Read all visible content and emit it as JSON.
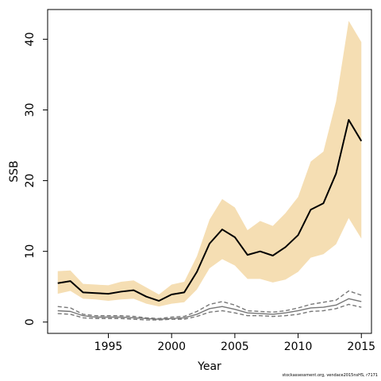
{
  "chart_data": {
    "type": "line",
    "title": "",
    "xlabel": "Year",
    "ylabel": "SSB",
    "xlim": [
      1990.2,
      2015.8
    ],
    "ylim": [
      -1.6,
      44.2
    ],
    "x_ticks": [
      1995,
      2000,
      2005,
      2010,
      2015
    ],
    "y_ticks": [
      0,
      10,
      20,
      30,
      40
    ],
    "grid": false,
    "legend": "none",
    "x": [
      1991,
      1992,
      1993,
      1994,
      1995,
      1996,
      1997,
      1998,
      1999,
      2000,
      2001,
      2002,
      2003,
      2004,
      2005,
      2006,
      2007,
      2008,
      2009,
      2010,
      2011,
      2012,
      2013,
      2014,
      2015
    ],
    "series": [
      {
        "role": "band",
        "color": "#f5deb3",
        "lower": [
          4.0,
          4.4,
          3.3,
          3.2,
          3.0,
          3.2,
          3.3,
          2.6,
          2.2,
          2.6,
          2.8,
          4.6,
          7.6,
          8.9,
          8.0,
          6.1,
          6.1,
          5.6,
          6.0,
          7.1,
          9.1,
          9.6,
          11.0,
          14.7,
          11.8
        ],
        "upper": [
          7.2,
          7.3,
          5.4,
          5.3,
          5.2,
          5.7,
          5.9,
          4.9,
          3.9,
          5.3,
          5.7,
          9.3,
          14.5,
          17.4,
          16.2,
          13.0,
          14.3,
          13.6,
          15.4,
          17.7,
          22.7,
          24.1,
          31.2,
          42.6,
          39.6
        ]
      },
      {
        "role": "estimate",
        "color": "#000000",
        "values": [
          5.5,
          5.8,
          4.2,
          4.1,
          4.0,
          4.3,
          4.5,
          3.6,
          3.0,
          3.9,
          4.2,
          7.1,
          11.1,
          13.1,
          12.0,
          9.5,
          10.0,
          9.4,
          10.6,
          12.3,
          15.9,
          16.8,
          21.0,
          28.6,
          25.6
        ]
      },
      {
        "role": "retrospective-estimate",
        "color": "#777777",
        "values": [
          1.6,
          1.5,
          0.9,
          0.7,
          0.7,
          0.7,
          0.6,
          0.5,
          0.4,
          0.5,
          0.6,
          1.1,
          1.9,
          2.2,
          1.8,
          1.3,
          1.2,
          1.1,
          1.3,
          1.6,
          2.0,
          2.1,
          2.4,
          3.3,
          2.9
        ]
      },
      {
        "role": "retrospective-upper",
        "color": "#777777",
        "dashed": true,
        "values": [
          2.2,
          2.0,
          1.1,
          0.9,
          0.9,
          0.9,
          0.8,
          0.6,
          0.5,
          0.7,
          0.8,
          1.5,
          2.5,
          2.9,
          2.4,
          1.6,
          1.5,
          1.4,
          1.6,
          2.0,
          2.5,
          2.8,
          3.1,
          4.4,
          3.8
        ]
      },
      {
        "role": "retrospective-lower",
        "color": "#777777",
        "dashed": true,
        "values": [
          1.2,
          1.1,
          0.6,
          0.5,
          0.5,
          0.5,
          0.4,
          0.3,
          0.3,
          0.4,
          0.4,
          0.8,
          1.4,
          1.6,
          1.3,
          0.9,
          0.9,
          0.8,
          0.9,
          1.1,
          1.5,
          1.6,
          1.9,
          2.5,
          2.1
        ]
      }
    ]
  },
  "footer": {
    "source_note": "stockassessment.org, vendace2015nsHS, r7171"
  }
}
